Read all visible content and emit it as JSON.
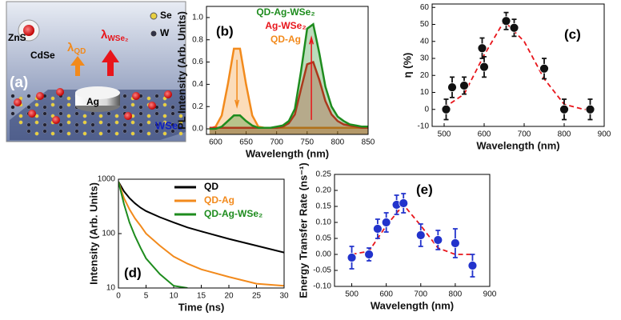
{
  "illustration": {
    "panel_label": "(a)",
    "shell": "ZnS",
    "core": "CdSe",
    "lambda_qd": {
      "symbol": "λ",
      "sub": "QD"
    },
    "lambda_wse2": {
      "symbol": "λ",
      "sub": "WSe₂"
    },
    "legend_se": "Se",
    "legend_w": "W",
    "disk": "Ag",
    "layer": "WSe₂"
  },
  "chart_data": [
    {
      "type": "area",
      "panel_label": "(b)",
      "xlabel": "Wavelength (nm)",
      "ylabel": "PL Intensity (Arb. Units)",
      "xlim": [
        585,
        850
      ],
      "xticks": [
        600,
        650,
        700,
        750,
        800,
        850
      ],
      "ylim": [
        -0.05,
        1.1
      ],
      "yticks": [
        {
          "value": 0,
          "label": "0.0"
        },
        0.2,
        0.4,
        0.6,
        0.8,
        {
          "value": 1,
          "label": "1.0"
        }
      ],
      "legend": "upper center",
      "x": [
        590,
        600,
        610,
        620,
        630,
        640,
        650,
        660,
        670,
        680,
        690,
        700,
        710,
        720,
        730,
        740,
        750,
        760,
        770,
        780,
        790,
        800,
        810,
        820,
        830,
        840,
        850
      ],
      "series": [
        {
          "name": "QD-Ag-WSe₂",
          "color": "#1e8c1e",
          "values": [
            0,
            0,
            0.02,
            0.07,
            0.12,
            0.12,
            0.07,
            0.03,
            0.01,
            0.01,
            0.01,
            0.02,
            0.03,
            0.07,
            0.18,
            0.52,
            0.9,
            0.94,
            0.68,
            0.38,
            0.2,
            0.11,
            0.07,
            0.04,
            0.03,
            0.02,
            0.02
          ]
        },
        {
          "name": "Ag-WSe₂",
          "color": "#e8151b",
          "values": [
            0.01,
            0.01,
            0.01,
            0.01,
            0.01,
            0.01,
            0.01,
            0.01,
            0.01,
            0.01,
            0.01,
            0.01,
            0.02,
            0.05,
            0.13,
            0.36,
            0.58,
            0.6,
            0.44,
            0.25,
            0.13,
            0.07,
            0.04,
            0.03,
            0.02,
            0.01,
            0.01
          ]
        },
        {
          "name": "QD-Ag",
          "color": "#f28a1c",
          "values": [
            0,
            0.02,
            0.12,
            0.4,
            0.72,
            0.72,
            0.4,
            0.12,
            0.02,
            0.01,
            0.01,
            0.01,
            0.01,
            0.01,
            0.01,
            0.01,
            0.01,
            0.01,
            0.01,
            0.01,
            0.01,
            0.01,
            0.01,
            0.01,
            0.01,
            0.01,
            0.01
          ]
        }
      ]
    },
    {
      "type": "scatter",
      "panel_label": "(c)",
      "xlabel": "Wavelength (nm)",
      "ylabel": "η (%)",
      "xlim": [
        470,
        900
      ],
      "xticks": [
        500,
        600,
        700,
        800,
        900
      ],
      "ylim": [
        -10,
        62
      ],
      "yticks": [
        -10,
        0,
        10,
        20,
        30,
        40,
        50,
        60
      ],
      "color": "#111111",
      "fit_color": "#e8151b",
      "x": [
        505,
        520,
        550,
        595,
        600,
        655,
        675,
        750,
        800,
        865
      ],
      "values": [
        0,
        13,
        14,
        36,
        25,
        52,
        48,
        24,
        0,
        0
      ],
      "errors": [
        6,
        6,
        5,
        6,
        6,
        5,
        5,
        6,
        6,
        6
      ],
      "fit_x": [
        500,
        550,
        600,
        650,
        700,
        750,
        800,
        850,
        870
      ],
      "fit_values": [
        1,
        9,
        32,
        52,
        40,
        18,
        3,
        0,
        0
      ]
    },
    {
      "type": "line",
      "panel_label": "(d)",
      "xlabel": "Time (ns)",
      "ylabel": "Intensity (Arb. Units)",
      "log_y": true,
      "legend": "upper right",
      "xlim": [
        0,
        30
      ],
      "xticks": [
        0,
        5,
        10,
        15,
        20,
        25,
        30
      ],
      "ylim": [
        10,
        1000
      ],
      "yticks": [
        10,
        100,
        1000
      ],
      "x": [
        0,
        1,
        2,
        3,
        4,
        5,
        7.5,
        10,
        12.5,
        15,
        20,
        25,
        30
      ],
      "series": [
        {
          "name": "QD",
          "color": "#000000",
          "values": [
            900,
            600,
            450,
            360,
            300,
            260,
            200,
            160,
            130,
            110,
            80,
            60,
            45
          ]
        },
        {
          "name": "QD-Ag",
          "color": "#f28a1c",
          "values": [
            900,
            450,
            280,
            190,
            140,
            100,
            60,
            38,
            28,
            22,
            16,
            12,
            11
          ]
        },
        {
          "name": "QD-Ag-WSe₂",
          "color": "#1e8c1e",
          "values": [
            900,
            350,
            160,
            90,
            55,
            35,
            18,
            11,
            10,
            null,
            null,
            null,
            null
          ]
        }
      ]
    },
    {
      "type": "scatter",
      "panel_label": "(e)",
      "xlabel": "Wavelength (nm)",
      "ylabel": "Energy Transfer Rate (ns⁻¹)",
      "xlim": [
        450,
        900
      ],
      "xticks": [
        500,
        600,
        700,
        800,
        900
      ],
      "ylim": [
        -0.1,
        0.25
      ],
      "yticks": [
        {
          "value": -0.1,
          "label": "-0.10"
        },
        {
          "value": -0.05,
          "label": "-0.05"
        },
        {
          "value": 0,
          "label": "0.00"
        },
        {
          "value": 0.05,
          "label": "0.05"
        },
        {
          "value": 0.1,
          "label": "0.10"
        },
        {
          "value": 0.15,
          "label": "0.15"
        },
        {
          "value": 0.2,
          "label": "0.20"
        },
        {
          "value": 0.25,
          "label": "0.25"
        }
      ],
      "color": "#2233cc",
      "fit_color": "#e8151b",
      "x": [
        500,
        550,
        575,
        600,
        630,
        650,
        700,
        750,
        800,
        850
      ],
      "values": [
        -0.01,
        0,
        0.08,
        0.1,
        0.155,
        0.16,
        0.06,
        0.045,
        0.035,
        -0.035
      ],
      "errors": [
        0.035,
        0.02,
        0.03,
        0.03,
        0.03,
        0.03,
        0.035,
        0.03,
        0.045,
        0.035
      ],
      "fit_x": [
        500,
        550,
        600,
        650,
        700,
        750,
        800,
        850
      ],
      "fit_values": [
        0,
        0.01,
        0.09,
        0.155,
        0.09,
        0.02,
        0,
        0
      ]
    }
  ]
}
